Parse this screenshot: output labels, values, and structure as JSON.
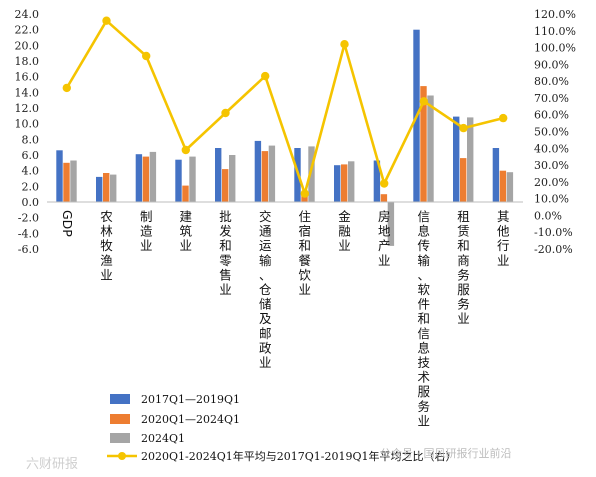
{
  "chart_data": {
    "type": "bar",
    "categories": [
      "GDP",
      "农林牧渔业",
      "制造业",
      "建筑业",
      "批发和零售业",
      "交通运输、仓储及邮政业",
      "住宿和餐饮业",
      "金融业",
      "房地产业",
      "信息传输、软件和信息技术服务业",
      "租赁和商务服务业",
      "其他行业"
    ],
    "series": [
      {
        "name": "2017Q1—2019Q1",
        "axis": "left",
        "color": "#4472c4",
        "values": [
          6.6,
          3.2,
          6.1,
          5.4,
          6.9,
          7.8,
          6.9,
          4.7,
          5.3,
          22.0,
          10.9,
          6.9
        ]
      },
      {
        "name": "2020Q1—2024Q1",
        "axis": "left",
        "color": "#ed7d31",
        "values": [
          5.0,
          3.7,
          5.8,
          2.1,
          4.2,
          6.5,
          0.9,
          4.8,
          1.0,
          14.8,
          5.6,
          4.0
        ]
      },
      {
        "name": "2024Q1",
        "axis": "left",
        "color": "#a5a5a5",
        "values": [
          5.3,
          3.5,
          6.4,
          5.8,
          6.0,
          7.2,
          7.1,
          5.2,
          -5.6,
          13.6,
          10.8,
          3.8
        ]
      },
      {
        "name": "2020Q1-2024Q1年平均与2017Q1-2019Q1年平均之比（右）",
        "type": "line",
        "axis": "right",
        "color": "#f5c400",
        "values": [
          0.76,
          1.16,
          0.95,
          0.39,
          0.61,
          0.83,
          0.13,
          1.02,
          0.19,
          0.68,
          0.52,
          0.58
        ]
      }
    ],
    "y_left": {
      "ticks": [
        "24.0",
        "22.0",
        "20.0",
        "18.0",
        "16.0",
        "14.0",
        "12.0",
        "10.0",
        "8.0",
        "6.0",
        "4.0",
        "2.0",
        "0.0",
        "-2.0",
        "-4.0",
        "-6.0"
      ],
      "ylim": [
        -6,
        24
      ]
    },
    "y_right": {
      "ticks": [
        "120.0%",
        "110.0%",
        "100.0%",
        "90.0%",
        "80.0%",
        "70.0%",
        "60.0%",
        "50.0%",
        "40.0%",
        "30.0%",
        "20.0%",
        "10.0%",
        "0.0%",
        "-10.0%",
        "-20.0%"
      ],
      "ylim": [
        -0.2,
        1.2
      ]
    },
    "legend_position": "bottom-left",
    "grid": false
  },
  "watermark": {
    "left": "六财研报",
    "right": "公众号 · 国风研报行业前沿"
  }
}
